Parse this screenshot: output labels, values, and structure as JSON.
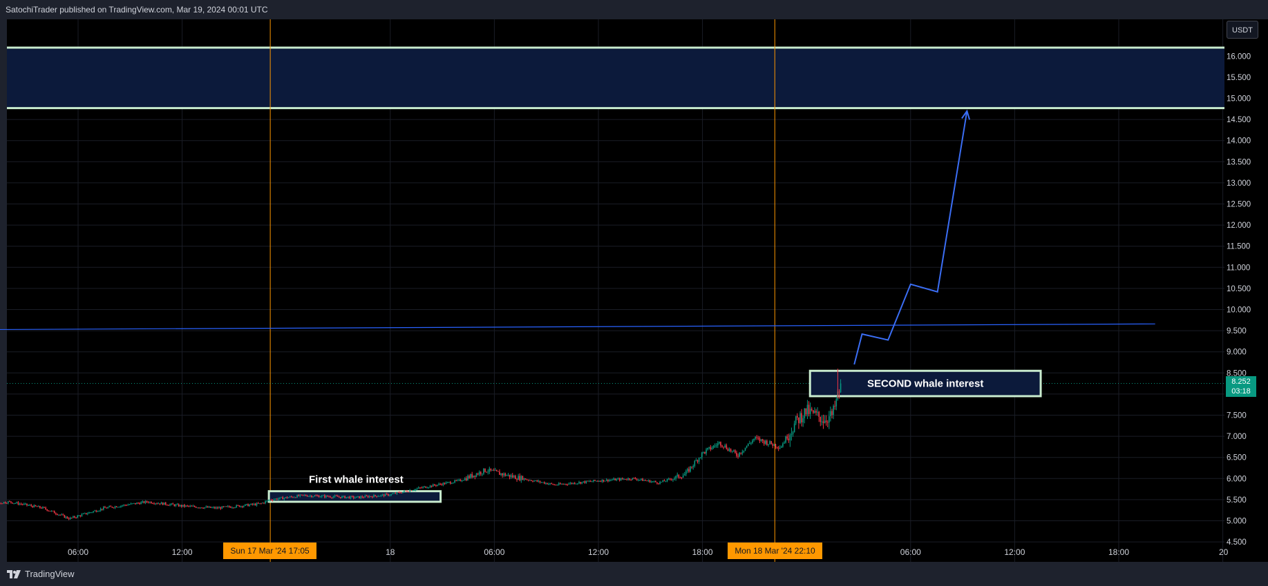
{
  "header": {
    "publisher": "SatochiTrader published on TradingView.com, Mar 19, 2024 00:01 UTC"
  },
  "footer": {
    "brand": "TradingView"
  },
  "price_axis": {
    "currency": "USDT"
  },
  "last_price": {
    "value": "8.252",
    "countdown": "03:18"
  },
  "crosshair_labels": {
    "left": "Sun 17 Mar '24   17:05",
    "right": "Mon 18 Mar '24   22:10"
  },
  "annotations": {
    "first": "First whale interest",
    "second": "SECOND whale interest"
  },
  "colors": {
    "background": "#000000",
    "grid": "#1a1d26",
    "zone_fill": "#0c1a3b",
    "zone_border": "#c9eccf",
    "vertical_marker": "#ff9800",
    "trendline": "#2962ff",
    "forecast": "#3b6ef5",
    "candle_up": "#089981",
    "candle_down": "#f23645",
    "axis_text": "#d1d4dc"
  },
  "chart_data": {
    "type": "candlestick",
    "title": "",
    "ylabel": "USDT",
    "ylim": [
      4.4,
      16.5
    ],
    "y_ticks": [
      4.5,
      5.0,
      5.5,
      6.0,
      6.5,
      7.0,
      7.5,
      8.0,
      8.5,
      9.0,
      9.5,
      10.0,
      10.5,
      11.0,
      11.5,
      12.0,
      12.5,
      13.0,
      13.5,
      14.0,
      14.5,
      15.0,
      15.5,
      16.0
    ],
    "y_tick_labels": [
      "4.500",
      "5.000",
      "5.500",
      "6.000",
      "6.500",
      "7.000",
      "7.500",
      "8.000",
      "8.500",
      "9.000",
      "9.500",
      "10.000",
      "10.500",
      "11.000",
      "11.500",
      "12.000",
      "12.500",
      "13.000",
      "13.500",
      "14.000",
      "14.500",
      "15.000",
      "15.500",
      "16.000"
    ],
    "x_range_hours": [
      -1.97,
      68.1
    ],
    "x_ticks": [
      {
        "h": 6,
        "label": "06:00"
      },
      {
        "h": 12,
        "label": "12:00"
      },
      {
        "h": 24,
        "label": "18"
      },
      {
        "h": 30,
        "label": "06:00"
      },
      {
        "h": 36,
        "label": "12:00"
      },
      {
        "h": 42,
        "label": "18:00"
      },
      {
        "h": 54,
        "label": "06:00"
      },
      {
        "h": 60,
        "label": "12:00"
      },
      {
        "h": 66,
        "label": "18:00"
      },
      {
        "h": 72,
        "label": "20"
      }
    ],
    "price_path": [
      [
        0,
        5.35
      ],
      [
        2,
        5.45
      ],
      [
        4,
        5.3
      ],
      [
        5.5,
        5.05
      ],
      [
        7.5,
        5.3
      ],
      [
        10,
        5.45
      ],
      [
        12,
        5.35
      ],
      [
        14,
        5.3
      ],
      [
        16.5,
        5.4
      ],
      [
        17.08,
        5.5
      ],
      [
        19,
        5.6
      ],
      [
        22,
        5.55
      ],
      [
        24,
        5.62
      ],
      [
        26,
        5.8
      ],
      [
        28,
        5.95
      ],
      [
        29.5,
        6.2
      ],
      [
        31,
        6.05
      ],
      [
        33.5,
        5.85
      ],
      [
        36,
        5.95
      ],
      [
        38,
        6.0
      ],
      [
        39.5,
        5.9
      ],
      [
        41,
        6.1
      ],
      [
        42,
        6.6
      ],
      [
        43,
        6.85
      ],
      [
        44,
        6.55
      ],
      [
        45,
        6.95
      ],
      [
        46.5,
        6.75
      ],
      [
        47.5,
        7.4
      ],
      [
        48,
        7.6
      ],
      [
        48.5,
        7.5
      ],
      [
        49,
        7.4
      ],
      [
        49.5,
        7.5
      ],
      [
        50,
        8.252
      ]
    ],
    "series": [
      {
        "name": "",
        "type": "line",
        "x": [
          -1.97,
          68.1
        ],
        "y": [
          9.52,
          9.66
        ]
      },
      {
        "name": "",
        "type": "line",
        "x": [
          50.75,
          51.2,
          52.7,
          54.0,
          55.55,
          57.25
        ],
        "y": [
          8.7,
          9.42,
          9.28,
          10.6,
          10.42,
          14.7
        ]
      },
      {
        "name": "",
        "type": "hline",
        "y": 8.252
      }
    ],
    "zones": [
      {
        "y": [
          14.77,
          16.2
        ]
      },
      {
        "x": [
          17.0,
          26.9
        ],
        "y": [
          5.45,
          5.7
        ],
        "label": "First whale interest"
      },
      {
        "x": [
          48.2,
          61.5
        ],
        "y": [
          7.95,
          8.55
        ],
        "label": "SECOND whale interest"
      }
    ],
    "vertical_markers": [
      17.08,
      46.17
    ]
  }
}
